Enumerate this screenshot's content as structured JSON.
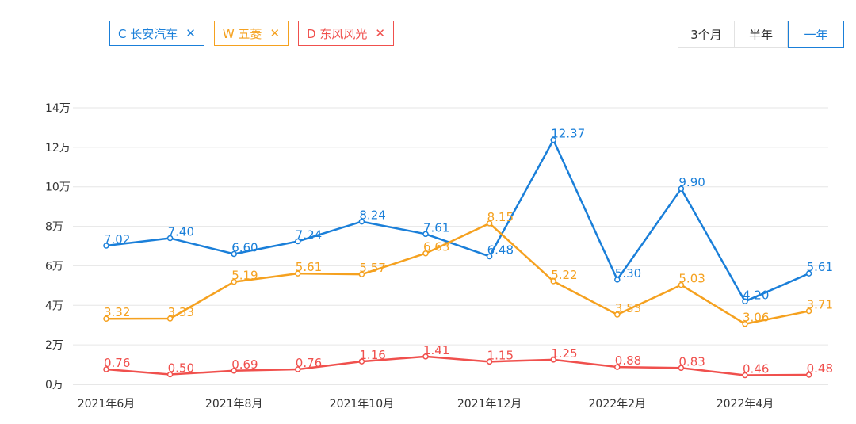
{
  "legend": [
    {
      "label": "C 长安汽车",
      "close": "✕",
      "color": "#1a7fd9"
    },
    {
      "label": "W 五菱",
      "close": "✕",
      "color": "#f5a11f"
    },
    {
      "label": "D 东风风光",
      "close": "✕",
      "color": "#f0504d"
    }
  ],
  "range_buttons": [
    {
      "label": "3个月",
      "active": false
    },
    {
      "label": "半年",
      "active": false
    },
    {
      "label": "一年",
      "active": true
    }
  ],
  "chart_data": {
    "type": "line",
    "x": [
      "2021年6月",
      "2021年7月",
      "2021年8月",
      "2021年9月",
      "2021年10月",
      "2021年11月",
      "2021年12月",
      "2022年1月",
      "2022年2月",
      "2022年3月",
      "2022年4月",
      "2022年5月"
    ],
    "x_tick_labels": [
      "2021年6月",
      "2021年8月",
      "2021年10月",
      "2021年12月",
      "2022年2月",
      "2022年4月"
    ],
    "y_tick_labels": [
      "0万",
      "2万",
      "4万",
      "6万",
      "8万",
      "10万",
      "12万",
      "14万"
    ],
    "ylim": [
      0,
      14
    ],
    "grid": true,
    "series": [
      {
        "name": "C 长安汽车",
        "color": "#1a7fd9",
        "values": [
          7.02,
          7.4,
          6.6,
          7.24,
          8.24,
          7.61,
          6.48,
          12.37,
          5.3,
          9.9,
          4.2,
          5.61
        ],
        "labels": [
          "7.02",
          "7.40",
          "6.60",
          "7.24",
          "8.24",
          "7.61",
          "6.48",
          "12.37",
          "5.30",
          "9.90",
          "4.20",
          "5.61"
        ]
      },
      {
        "name": "W 五菱",
        "color": "#f5a11f",
        "values": [
          3.32,
          3.33,
          5.19,
          5.61,
          5.57,
          6.63,
          8.15,
          5.22,
          3.53,
          5.03,
          3.06,
          3.71
        ],
        "labels": [
          "3.32",
          "3.33",
          "5.19",
          "5.61",
          "5.57",
          "6.63",
          "8.15",
          "5.22",
          "3.53",
          "5.03",
          "3.06",
          "3.71"
        ]
      },
      {
        "name": "D 东风风光",
        "color": "#f0504d",
        "values": [
          0.76,
          0.5,
          0.69,
          0.76,
          1.16,
          1.41,
          1.15,
          1.25,
          0.88,
          0.83,
          0.46,
          0.48
        ],
        "labels": [
          "0.76",
          "0.50",
          "0.69",
          "0.76",
          "1.16",
          "1.41",
          "1.15",
          "1.25",
          "0.88",
          "0.83",
          "0.46",
          "0.48"
        ]
      }
    ]
  }
}
